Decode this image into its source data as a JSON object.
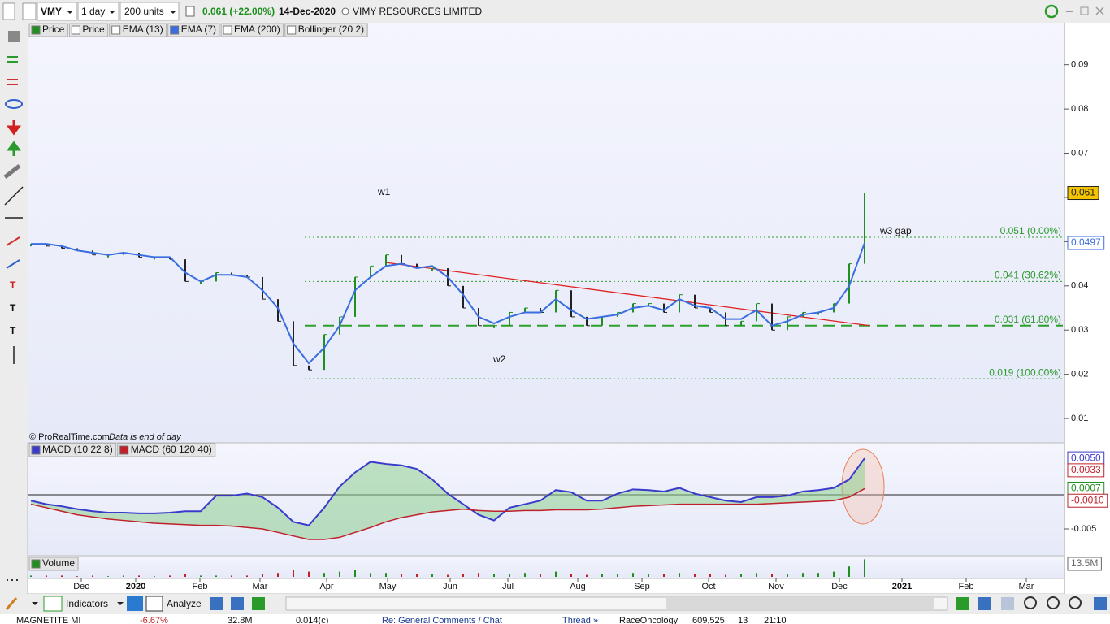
{
  "toolbar": {
    "ticker": "VMY",
    "interval": "1 day",
    "units": "200 units",
    "change": "0.061 (+22.00%)",
    "date": "14-Dec-2020",
    "name": "VIMY RESOURCES LIMITED"
  },
  "chart_data": [
    {
      "type": "line",
      "panel": "price",
      "series": [
        {
          "name": "Price",
          "color": "#1f8f1f",
          "values": [
            0.0495,
            0.049,
            0.0485,
            0.048,
            0.047,
            0.047,
            0.0475,
            0.0465,
            0.0465,
            0.046,
            0.041,
            0.041,
            0.043,
            0.0425,
            0.042,
            0.037,
            0.032,
            0.022,
            0.021,
            0.029,
            0.033,
            0.042,
            0.0445,
            0.047,
            0.045,
            0.044,
            0.044,
            0.04,
            0.035,
            0.031,
            0.031,
            0.034,
            0.035,
            0.034,
            0.039,
            0.033,
            0.031,
            0.033,
            0.034,
            0.036,
            0.036,
            0.034,
            0.038,
            0.035,
            0.034,
            0.031,
            0.032,
            0.036,
            0.03,
            0.033,
            0.034,
            0.034,
            0.036,
            0.045,
            0.061
          ]
        },
        {
          "name": "EMA (7)",
          "color": "#3a6ee0",
          "values": [
            0.0495,
            0.0495,
            0.049,
            0.048,
            0.0475,
            0.047,
            0.0475,
            0.047,
            0.0465,
            0.0465,
            0.043,
            0.041,
            0.0425,
            0.0425,
            0.042,
            0.039,
            0.035,
            0.027,
            0.0225,
            0.026,
            0.031,
            0.039,
            0.042,
            0.0445,
            0.045,
            0.044,
            0.0445,
            0.042,
            0.038,
            0.033,
            0.0315,
            0.033,
            0.034,
            0.034,
            0.037,
            0.0345,
            0.0325,
            0.033,
            0.0335,
            0.035,
            0.0355,
            0.0345,
            0.037,
            0.0355,
            0.035,
            0.0325,
            0.0325,
            0.0345,
            0.031,
            0.032,
            0.0335,
            0.034,
            0.035,
            0.04,
            0.0497
          ]
        }
      ],
      "inactive_legend": [
        "Price",
        "EMA (13)",
        "EMA (200)",
        "Bollinger (20 2)"
      ],
      "ylim": [
        0.0045,
        0.0995
      ],
      "yticks": [
        0.01,
        0.02,
        0.03,
        0.04,
        0.05,
        0.06,
        0.07,
        0.08,
        0.09
      ],
      "last_labels": [
        {
          "value": 0.061,
          "label": "0.061"
        },
        {
          "value": 0.0497,
          "label": "0.0497"
        }
      ],
      "levels": [
        {
          "value": 0.051,
          "label": "0.051 (0.00%)"
        },
        {
          "value": 0.041,
          "label": "0.041 (30.62%)"
        },
        {
          "value": 0.031,
          "label": "0.031 (61.80%)"
        },
        {
          "value": 0.019,
          "label": "0.019 (100.00%)"
        }
      ],
      "trendline": [
        0.0453,
        0.031
      ],
      "annotations": [
        "w1",
        "w2",
        "w3 gap"
      ],
      "x_labels": [
        "Dec",
        "2020",
        "Feb",
        "Mar",
        "Apr",
        "May",
        "Jun",
        "Jul",
        "Aug",
        "Sep",
        "Oct",
        "Nov",
        "Dec",
        "2021",
        "Feb",
        "Mar"
      ]
    },
    {
      "type": "line",
      "panel": "macd",
      "series": [
        {
          "name": "MACD (10 22 8)",
          "color": "#3a3acc",
          "values": [
            -0.001,
            -0.0015,
            -0.0018,
            -0.0022,
            -0.0025,
            -0.0027,
            -0.0027,
            -0.0028,
            -0.0028,
            -0.0027,
            -0.0025,
            -0.0025,
            -0.0003,
            -0.0003,
            0,
            -0.0005,
            -0.002,
            -0.004,
            -0.0045,
            -0.002,
            0.001,
            0.003,
            0.0045,
            0.0042,
            0.004,
            0.0035,
            0.002,
            0,
            -0.0015,
            -0.003,
            -0.0038,
            -0.002,
            -0.0015,
            -0.001,
            0.0005,
            0.0002,
            -0.001,
            -0.001,
            0,
            0.0006,
            0.0005,
            0.0003,
            0.0008,
            0,
            -0.0005,
            -0.001,
            -0.0012,
            -0.0005,
            -0.0005,
            -0.0003,
            0.0003,
            0.0005,
            0.0008,
            0.002,
            0.005
          ]
        },
        {
          "name": "MACD (60 120 40)",
          "color": "#c0202a",
          "values": [
            -0.0015,
            -0.002,
            -0.0025,
            -0.003,
            -0.0033,
            -0.0036,
            -0.0038,
            -0.004,
            -0.0042,
            -0.0043,
            -0.0044,
            -0.0045,
            -0.0045,
            -0.0046,
            -0.0048,
            -0.005,
            -0.0055,
            -0.006,
            -0.0065,
            -0.0065,
            -0.0062,
            -0.0055,
            -0.0048,
            -0.004,
            -0.0034,
            -0.003,
            -0.0026,
            -0.0024,
            -0.0022,
            -0.0024,
            -0.0025,
            -0.0025,
            -0.0024,
            -0.0024,
            -0.0023,
            -0.0023,
            -0.0023,
            -0.0022,
            -0.002,
            -0.0018,
            -0.0017,
            -0.0016,
            -0.0015,
            -0.0015,
            -0.0015,
            -0.0015,
            -0.0015,
            -0.0015,
            -0.0014,
            -0.0013,
            -0.0012,
            -0.0011,
            -0.001,
            -0.0005,
            0.0007
          ]
        }
      ],
      "ylim": [
        -0.0088,
        0.0072
      ],
      "yticks": [
        -0.005
      ],
      "last_labels": [
        {
          "value": 0.005,
          "label": "0.0050",
          "color": "#3a3acc"
        },
        {
          "value": 0.0033,
          "label": "0.0033",
          "color": "#c0202a"
        },
        {
          "value": 0.0007,
          "label": "0.0007",
          "color": "#1f8f1f"
        },
        {
          "value": -0.001,
          "label": "-0.0010",
          "color": "#c0202a"
        }
      ]
    },
    {
      "type": "bar",
      "panel": "volume",
      "series": [
        {
          "name": "Volume",
          "color": "#1f8f1f",
          "values": [
            1,
            1,
            1,
            0.5,
            1,
            0.5,
            1,
            1,
            0.5,
            1,
            2,
            1,
            1,
            1,
            1,
            2,
            3,
            5,
            4,
            3,
            4,
            5,
            3,
            3,
            2,
            2,
            2,
            1.5,
            2,
            3,
            2,
            2,
            3,
            2,
            4,
            2,
            1.5,
            2,
            2,
            3,
            2,
            2,
            3,
            2,
            2,
            1.5,
            2,
            3,
            2,
            2,
            3,
            3,
            4,
            8,
            13.5
          ]
        }
      ],
      "ylim": [
        0,
        15
      ],
      "last_labels": [
        {
          "value": 13.5,
          "label": "13.5M"
        }
      ]
    }
  ],
  "footer": {
    "copyright": "© ProRealTime.com",
    "note": "Data is end of day"
  },
  "bottom_bar": {
    "indicators": "Indicators",
    "analyze": "Analyze"
  },
  "status_bar": [
    "MAGNETITE MI",
    "-6.67%",
    "32.8M",
    "0.014(c)",
    "Re: General Comments / Chat",
    "Thread »",
    "RaceOncology",
    "609,525",
    "13",
    "21:10"
  ]
}
